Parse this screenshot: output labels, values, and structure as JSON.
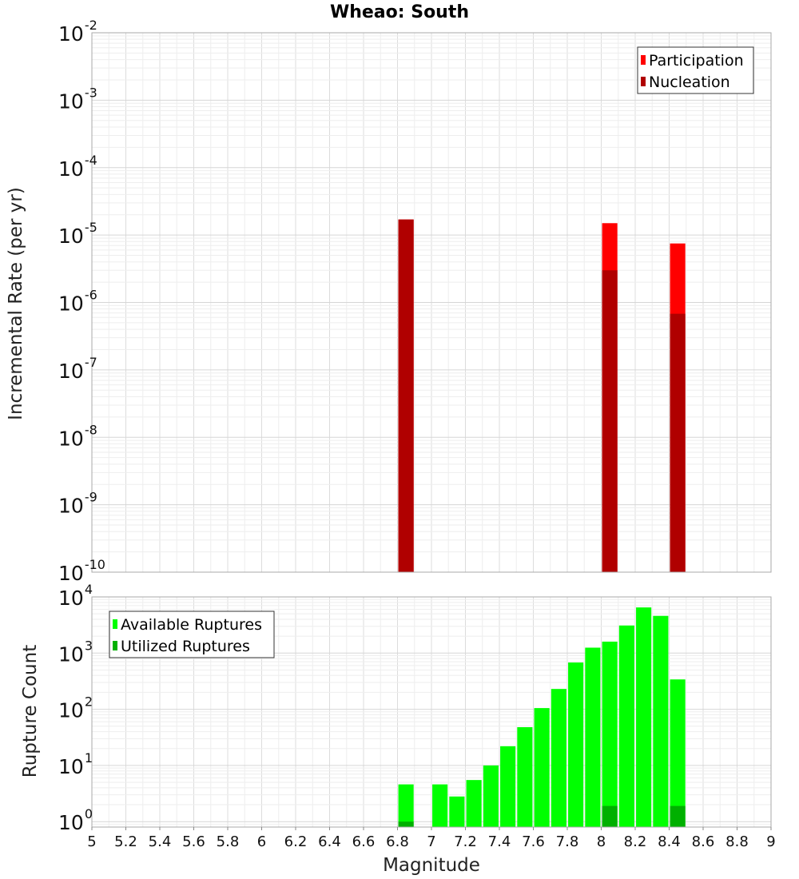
{
  "chart_data": [
    {
      "type": "bar",
      "title": "Wheao: South",
      "xlabel": "",
      "ylabel": "Incremental Rate (per yr)",
      "y_scale": "log",
      "ylim": [
        1e-10,
        0.01
      ],
      "xlim": [
        5,
        9
      ],
      "bar_width": 0.09,
      "y_ticks": [
        {
          "base": "10",
          "exp": "-10",
          "value": 1e-10
        },
        {
          "base": "10",
          "exp": "-9",
          "value": 1e-09
        },
        {
          "base": "10",
          "exp": "-8",
          "value": 1e-08
        },
        {
          "base": "10",
          "exp": "-7",
          "value": 1e-07
        },
        {
          "base": "10",
          "exp": "-6",
          "value": 1e-06
        },
        {
          "base": "10",
          "exp": "-5",
          "value": 1e-05
        },
        {
          "base": "10",
          "exp": "-4",
          "value": 0.0001
        },
        {
          "base": "10",
          "exp": "-3",
          "value": 0.001
        },
        {
          "base": "10",
          "exp": "-2",
          "value": 0.01
        }
      ],
      "legend": {
        "position": "top-right"
      },
      "grid": true,
      "series": [
        {
          "name": "Participation",
          "color": "#ff0000",
          "x": [
            6.85,
            8.05,
            8.45
          ],
          "values": [
            1.7e-05,
            1.5e-05,
            7.5e-06
          ]
        },
        {
          "name": "Nucleation",
          "color": "#b00000",
          "x": [
            6.85,
            8.05,
            8.45
          ],
          "values": [
            1.7e-05,
            3e-06,
            6.8e-07
          ]
        }
      ]
    },
    {
      "type": "bar",
      "title": "",
      "xlabel": "Magnitude",
      "ylabel": "Rupture Count",
      "y_scale": "log",
      "ylim": [
        0.8,
        10000
      ],
      "xlim": [
        5,
        9
      ],
      "bar_width": 0.09,
      "x_ticks": [
        "5",
        "5.2",
        "5.4",
        "5.6",
        "5.8",
        "6",
        "6.2",
        "6.4",
        "6.6",
        "6.8",
        "7",
        "7.2",
        "7.4",
        "7.6",
        "7.8",
        "8",
        "8.2",
        "8.4",
        "8.6",
        "8.8",
        "9"
      ],
      "y_ticks": [
        {
          "base": "10",
          "exp": "0",
          "value": 1
        },
        {
          "base": "10",
          "exp": "1",
          "value": 10
        },
        {
          "base": "10",
          "exp": "2",
          "value": 100
        },
        {
          "base": "10",
          "exp": "3",
          "value": 1000
        },
        {
          "base": "10",
          "exp": "4",
          "value": 10000
        }
      ],
      "legend": {
        "position": "top-left"
      },
      "grid": true,
      "series": [
        {
          "name": "Available Ruptures",
          "color": "#00ff00",
          "x": [
            6.85,
            7.05,
            7.15,
            7.25,
            7.35,
            7.45,
            7.55,
            7.65,
            7.75,
            7.85,
            7.95,
            8.05,
            8.15,
            8.25,
            8.35,
            8.45
          ],
          "values": [
            4.6,
            4.6,
            2.8,
            5.5,
            10,
            22,
            48,
            105,
            230,
            680,
            1250,
            1600,
            3100,
            6500,
            4600,
            340
          ]
        },
        {
          "name": "Utilized Ruptures",
          "color": "#00b000",
          "x": [
            6.85,
            8.05,
            8.45
          ],
          "values": [
            1,
            1.9,
            1.9
          ]
        }
      ]
    }
  ]
}
